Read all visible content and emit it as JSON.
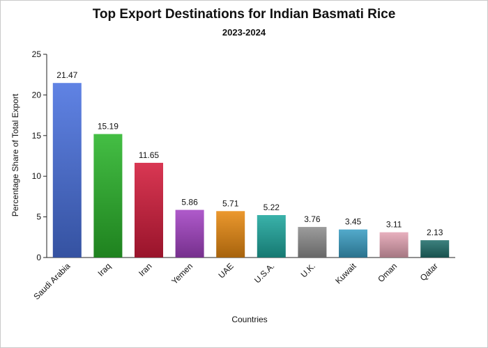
{
  "chart_data": {
    "type": "bar",
    "title": "Top Export Destinations for Indian Basmati Rice",
    "subtitle": "2023-2024",
    "xlabel": "Countries",
    "ylabel": "Percentage Share of Total Export",
    "ylim": [
      0,
      25
    ],
    "yticks": [
      0,
      5,
      10,
      15,
      20,
      25
    ],
    "categories": [
      "Saudi Arabia",
      "Iraq",
      "Iran",
      "Yemen",
      "UAE",
      "U.S.A.",
      "U.K.",
      "Kuwait",
      "Oman",
      "Qatar"
    ],
    "values": [
      21.47,
      15.19,
      11.65,
      5.86,
      5.71,
      5.22,
      3.76,
      3.45,
      3.11,
      2.13
    ],
    "value_labels": [
      "21.47",
      "15.19",
      "11.65",
      "5.86",
      "5.71",
      "5.22",
      "3.76",
      "3.45",
      "3.11",
      "2.13"
    ],
    "colors": [
      "#4a72e0",
      "#2bb52b",
      "#d41c3c",
      "#a443c4",
      "#e88a12",
      "#1fa89e",
      "#8f8f8f",
      "#3c9ec4",
      "#e5a5b5",
      "#22706c"
    ],
    "grid": false,
    "legend": "none"
  }
}
